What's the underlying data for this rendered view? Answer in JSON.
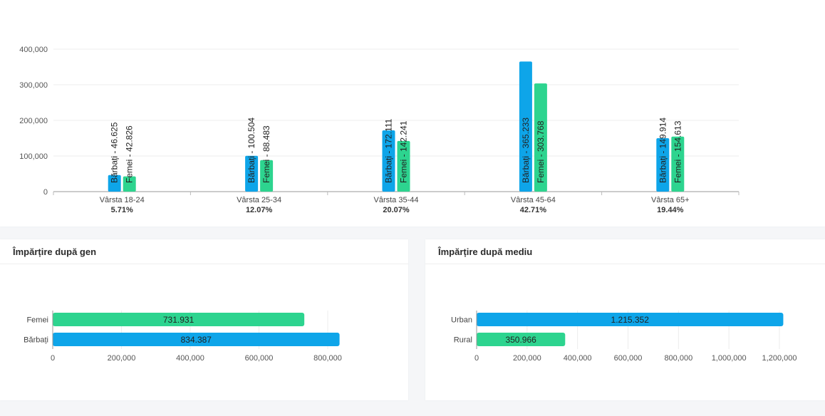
{
  "colors": {
    "men": "#0ea5e9",
    "women": "#2dd48f"
  },
  "age_card": {
    "title": ""
  },
  "gender_card": {
    "title": "Împărțire după gen"
  },
  "env_card": {
    "title": "Împărțire după mediu"
  },
  "chart_data": [
    {
      "type": "bar",
      "ylim": [
        0,
        400000
      ],
      "yticks": [
        "0",
        "100,000",
        "200,000",
        "300,000",
        "400,000"
      ],
      "categories": [
        "Vârsta 18-24",
        "Vârsta 25-34",
        "Vârsta 35-44",
        "Vârsta 45-64",
        "Vârsta 65+"
      ],
      "percentages": [
        "5.71%",
        "12.07%",
        "20.07%",
        "42.71%",
        "19.44%"
      ],
      "series": [
        {
          "values": [
            46625,
            100504,
            172111,
            365233,
            149914
          ],
          "labels": [
            "Bărbați - 46.625",
            "Bărbați - 100.504",
            "Bărbați - 172.111",
            "Bărbați - 365.233",
            "Bărbați - 149.914"
          ]
        },
        {
          "values": [
            42826,
            88483,
            142241,
            303768,
            154613
          ],
          "labels": [
            "Femei - 42.826",
            "Femei - 88.483",
            "Femei - 142.241",
            "Femei - 303.768",
            "Femei - 154.613"
          ]
        }
      ]
    },
    {
      "type": "bar",
      "orientation": "horizontal",
      "title": "Împărțire după gen",
      "xlim": [
        0,
        800000
      ],
      "xticks": [
        "0",
        "200,000",
        "400,000",
        "600,000",
        "800,000"
      ],
      "categories": [
        "Femei",
        "Bărbați"
      ],
      "values": [
        731931,
        834387
      ],
      "labels": [
        "731.931",
        "834.387"
      ],
      "colors": [
        "#2dd48f",
        "#0ea5e9"
      ]
    },
    {
      "type": "bar",
      "orientation": "horizontal",
      "title": "Împărțire după mediu",
      "xlim": [
        0,
        1200000
      ],
      "xticks": [
        "0",
        "200,000",
        "400,000",
        "600,000",
        "800,000",
        "1,000,000",
        "1,200,000"
      ],
      "categories": [
        "Urban",
        "Rural"
      ],
      "values": [
        1215352,
        350966
      ],
      "labels": [
        "1.215.352",
        "350.966"
      ],
      "colors": [
        "#0ea5e9",
        "#2dd48f"
      ]
    }
  ]
}
